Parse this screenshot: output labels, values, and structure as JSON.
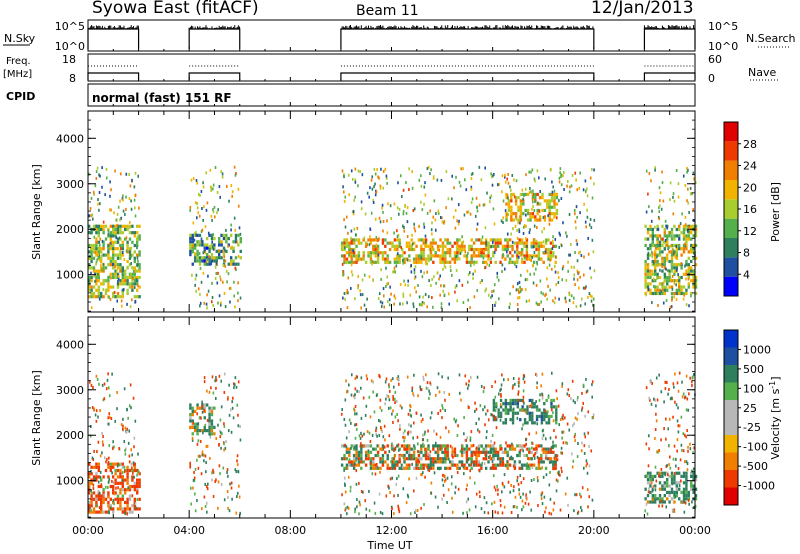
{
  "header": {
    "title": "Syowa East (fitACF)",
    "beam": "Beam 11",
    "date": "12/Jan/2013"
  },
  "top_panels": {
    "nsky_label": "N.Sky",
    "nsearch_label": "N.Search",
    "nsky_ticks": [
      "10^5",
      "10^0"
    ],
    "nsearch_ticks": [
      "10^5",
      "10^0"
    ],
    "freq_label": "Freq.",
    "freq_units": "[MHz]",
    "freq_ticks": [
      "18",
      "8"
    ],
    "nave_label": "Nave",
    "nave_ticks": [
      "60",
      "0"
    ],
    "cpid_label": "CPID",
    "cpid_text": "normal (fast) 151 RF"
  },
  "colors": {
    "power": [
      "#0000ff",
      "#1f4fa0",
      "#2e7f5e",
      "#55b04b",
      "#a9cc2f",
      "#f2b300",
      "#f07f00",
      "#ee3a00",
      "#e00000"
    ],
    "velocity": [
      "#e00000",
      "#ee3a00",
      "#f07f00",
      "#f2b300",
      "#b8b8b8",
      "#b8b8b8",
      "#55b04b",
      "#2e7f5e",
      "#1f4fa0",
      "#0033cc"
    ]
  },
  "chart_data": [
    {
      "type": "heatmap",
      "name": "power",
      "xlabel": "",
      "ylabel": "Slant Range [km]",
      "y_ticks": [
        "4000",
        "3000",
        "2000",
        "1000"
      ],
      "x_ticks": [
        "00:00",
        "04:00",
        "08:00",
        "12:00",
        "16:00",
        "20:00",
        "00:00"
      ],
      "ylim": [
        180,
        4600
      ],
      "xlim_hours": [
        0,
        24
      ],
      "colorbar": {
        "label": "Power [dB]",
        "ticks": [
          "28",
          "24",
          "20",
          "16",
          "12",
          "8",
          "4"
        ],
        "range": [
          0,
          30
        ]
      },
      "data_intervals_hours": [
        [
          0,
          2
        ],
        [
          4,
          6
        ],
        [
          10,
          20
        ],
        [
          22,
          24
        ]
      ],
      "features": [
        {
          "time_hours": [
            0,
            2
          ],
          "range_km": [
            500,
            2100
          ],
          "typical_value": 14
        },
        {
          "time_hours": [
            4,
            6
          ],
          "range_km": [
            1200,
            1900
          ],
          "typical_value": 10
        },
        {
          "time_hours": [
            10,
            18.5
          ],
          "range_km": [
            1300,
            1800
          ],
          "typical_value": 18
        },
        {
          "time_hours": [
            16.5,
            18.5
          ],
          "range_km": [
            2200,
            2800
          ],
          "typical_value": 17
        },
        {
          "time_hours": [
            22,
            24
          ],
          "range_km": [
            600,
            2100
          ],
          "typical_value": 14
        }
      ]
    },
    {
      "type": "heatmap",
      "name": "velocity",
      "xlabel": "Time UT",
      "ylabel": "Slant Range [km]",
      "y_ticks": [
        "4000",
        "3000",
        "2000",
        "1000"
      ],
      "x_ticks": [
        "00:00",
        "04:00",
        "08:00",
        "12:00",
        "16:00",
        "20:00",
        "00:00"
      ],
      "ylim": [
        180,
        4600
      ],
      "xlim_hours": [
        0,
        24
      ],
      "colorbar": {
        "label": "Velocity [m s^-1]",
        "ticks": [
          "1000",
          "500",
          "100",
          "25",
          "-25",
          "-100",
          "-500",
          "-1000"
        ]
      },
      "data_intervals_hours": [
        [
          0,
          2
        ],
        [
          4,
          6
        ],
        [
          10,
          20
        ],
        [
          22,
          24
        ]
      ],
      "features": [
        {
          "time_hours": [
            0,
            2
          ],
          "range_km": [
            300,
            1400
          ],
          "typical_value": -200
        },
        {
          "time_hours": [
            4,
            5
          ],
          "range_km": [
            2000,
            2700
          ],
          "typical_value": 150
        },
        {
          "time_hours": [
            10,
            18.5
          ],
          "range_km": [
            1300,
            1800
          ],
          "typical_value": 0
        },
        {
          "time_hours": [
            16,
            18.5
          ],
          "range_km": [
            2300,
            2800
          ],
          "typical_value": 300
        },
        {
          "time_hours": [
            22,
            24
          ],
          "range_km": [
            500,
            1200
          ],
          "typical_value": 200
        }
      ]
    }
  ]
}
